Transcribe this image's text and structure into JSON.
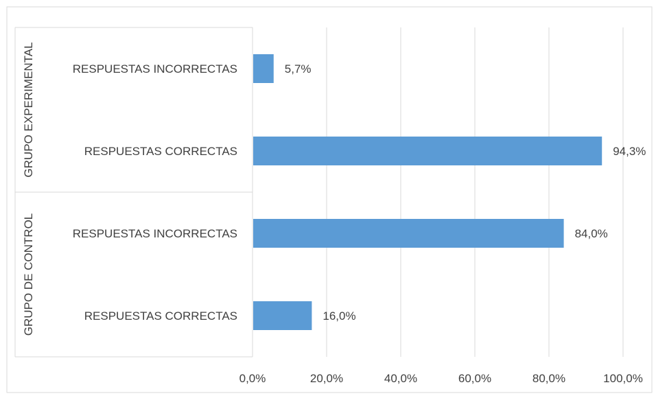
{
  "chart_data": {
    "type": "bar",
    "orientation": "horizontal",
    "xlim": [
      0,
      100
    ],
    "x_ticks": [
      "0,0%",
      "20,0%",
      "40,0%",
      "60,0%",
      "80,0%",
      "100,0%"
    ],
    "grid": true,
    "groups": [
      {
        "name": "GRUPO EXPERIMENTAL",
        "categories": [
          "RESPUESTAS INCORRECTAS",
          "RESPUESTAS CORRECTAS"
        ],
        "values": [
          5.7,
          94.3
        ],
        "labels": [
          "5,7%",
          "94,3%"
        ]
      },
      {
        "name": "GRUPO DE CONTROL",
        "categories": [
          "RESPUESTAS INCORRECTAS",
          "RESPUESTAS CORRECTAS"
        ],
        "values": [
          84.0,
          16.0
        ],
        "labels": [
          "84,0%",
          "16,0%"
        ]
      }
    ],
    "colors": {
      "bar": "#5b9bd5",
      "grid": "#d9d9d9",
      "text": "#404040",
      "border": "#d9d9d9"
    }
  }
}
